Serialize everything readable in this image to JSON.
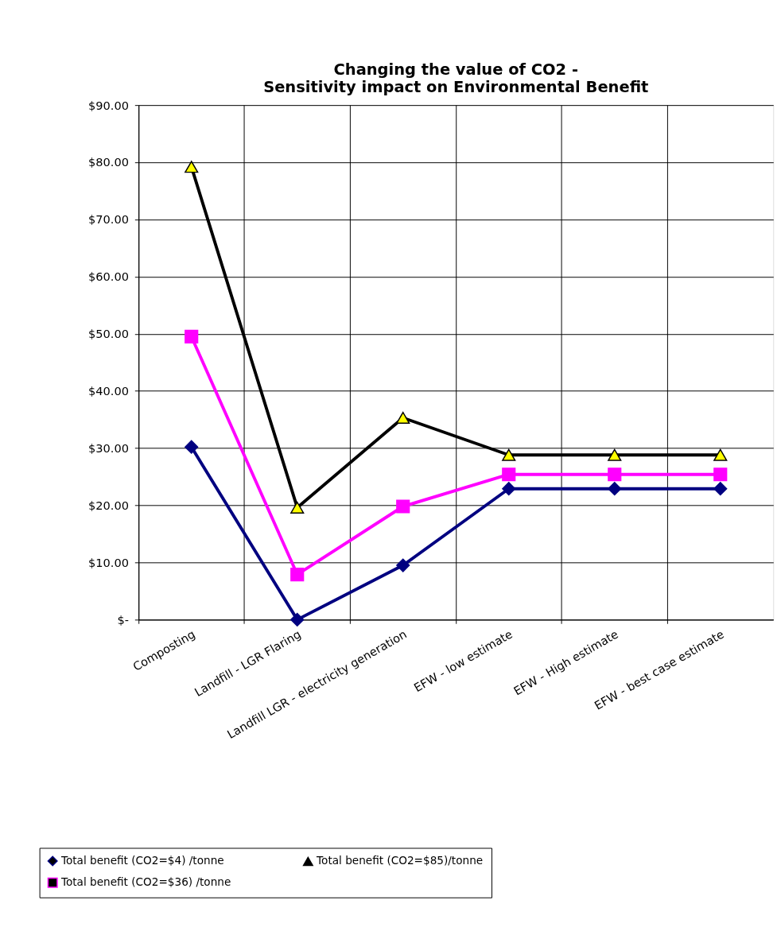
{
  "chart_data": {
    "type": "line",
    "title": "Changing the value of CO2 -\nSensitivity impact on Environmental Benefit",
    "categories": [
      "Composting",
      "Landfill - LGR Flaring",
      "Landfill LGR - electricity generation",
      "EFW - low estimate",
      "EFW - High estimate",
      "EFW - best case estimate"
    ],
    "series": [
      {
        "name": "Total benefit (CO2=$4) /tonne",
        "color": "#000080",
        "marker": "diamond",
        "values": [
          30.2,
          0,
          9.5,
          22.9,
          22.9,
          22.9
        ]
      },
      {
        "name": "Total benefit (CO2=$36) /tonne",
        "color": "#ff00ff",
        "marker": "square",
        "values": [
          49.5,
          7.9,
          19.8,
          25.4,
          25.4,
          25.4
        ]
      },
      {
        "name": "Total benefit (CO2=$85)/tonne",
        "color": "#000000",
        "marker": "triangle",
        "colors": [
          "#ffff00",
          "#ffff00",
          "#ffff00",
          "#ffff00",
          "#ffff00",
          "#ffff00"
        ],
        "values": [
          79.2,
          19.6,
          35.3,
          28.8,
          28.8,
          28.8
        ]
      }
    ],
    "ylim": [
      0,
      90
    ],
    "yticks": [
      {
        "value": 0,
        "label": "$-"
      },
      {
        "value": 10,
        "label": "$10.00"
      },
      {
        "value": 20,
        "label": "$20.00"
      },
      {
        "value": 30,
        "label": "$30.00"
      },
      {
        "value": 40,
        "label": "$40.00"
      },
      {
        "value": 50,
        "label": "$50.00"
      },
      {
        "value": 60,
        "label": "$60.00"
      },
      {
        "value": 70,
        "label": "$70.00"
      },
      {
        "value": 80,
        "label": "$80.00"
      },
      {
        "value": 90,
        "label": "$90.00"
      }
    ],
    "grid": true,
    "legend": "bottom",
    "line_style": "solid"
  }
}
